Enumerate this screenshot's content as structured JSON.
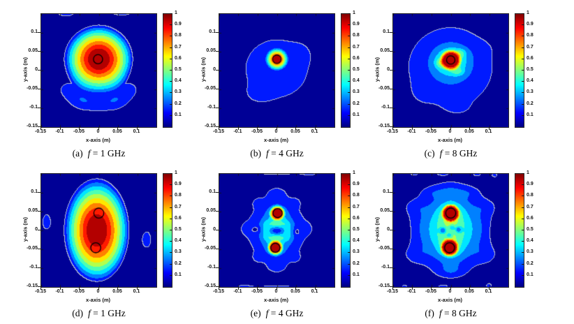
{
  "figure": {
    "background": "#ffffff",
    "axis_color": "#262626",
    "xlabel": "x-axis (m)",
    "ylabel": "y-axis (m)",
    "x_tick_labels": [
      "-0.15",
      "-0.1",
      "-0.05",
      "0",
      "0.05",
      "0.1"
    ],
    "x_tick_values": [
      -0.15,
      -0.1,
      -0.05,
      0,
      0.05,
      0.1
    ],
    "y_tick_labels": [
      "0.1",
      "0.05",
      "0",
      "-0.05",
      "-0.1",
      "-0.15"
    ],
    "y_tick_values": [
      0.1,
      0.05,
      0,
      -0.05,
      -0.1,
      -0.15
    ],
    "colorbar_tick_labels": [
      "1",
      "0.9",
      "0.8",
      "0.7",
      "0.6",
      "0.5",
      "0.4",
      "0.3",
      "0.2",
      "0.1"
    ],
    "colorbar_tick_values": [
      1,
      0.9,
      0.8,
      0.7,
      0.6,
      0.5,
      0.4,
      0.3,
      0.2,
      0.1
    ],
    "colormap": "jet",
    "band_colors": [
      "#000096",
      "#001aff",
      "#0080ff",
      "#00e6ff",
      "#4dffb3",
      "#b3ff4d",
      "#ffe600",
      "#ff8000",
      "#ff1a00",
      "#b30000"
    ],
    "colorbar_gradient": [
      "#000080",
      "#0000ff",
      "#00ffff",
      "#ffff00",
      "#ff0000",
      "#800000"
    ],
    "contour_line_color": "#b4bccd",
    "target_circle_color": "#000000"
  },
  "chart_data": [
    {
      "panel": "a",
      "type": "contour",
      "caption": {
        "index": "(a)",
        "variable": "f",
        "relation": "=",
        "value": "1 GHz"
      },
      "frequency_GHz": 1,
      "x_range": [
        -0.15,
        0.15
      ],
      "y_range": [
        -0.15,
        0.15
      ],
      "value_range": [
        0,
        1
      ],
      "peaks": [
        {
          "x": 0,
          "y": 0.03,
          "value": 1.0
        }
      ],
      "target_circles": [
        [
          -0.002,
          0.03,
          0.012
        ]
      ],
      "field_blobs": [
        [
          "cone",
          0,
          0.03,
          0.095,
          0.095,
          1.05,
          1.6
        ],
        [
          "g",
          -0.078,
          -0.05,
          0.028,
          0.022,
          0.12
        ],
        [
          "g",
          -0.045,
          -0.077,
          0.025,
          0.02,
          0.12
        ],
        [
          "g",
          0,
          -0.088,
          0.038,
          0.02,
          0.13
        ],
        [
          "g",
          0.045,
          -0.077,
          0.025,
          0.02,
          0.12
        ],
        [
          "g",
          0.078,
          -0.05,
          0.028,
          0.022,
          0.12
        ],
        [
          "g",
          -0.085,
          0.157,
          0.032,
          0.018,
          0.13
        ],
        [
          "g",
          0.06,
          0.159,
          0.04,
          0.018,
          0.13
        ]
      ]
    },
    {
      "panel": "b",
      "type": "contour",
      "caption": {
        "index": "(b)",
        "variable": "f",
        "relation": "=",
        "value": "4 GHz"
      },
      "frequency_GHz": 4,
      "x_range": [
        -0.15,
        0.15
      ],
      "y_range": [
        -0.15,
        0.15
      ],
      "value_range": [
        0,
        1
      ],
      "peaks": [
        {
          "x": 0,
          "y": 0.03,
          "value": 1.0
        }
      ],
      "target_circles": [
        [
          0,
          0.03,
          0.011
        ]
      ],
      "field_blobs": [
        [
          "cone",
          0,
          0.03,
          0.032,
          0.032,
          1.1,
          1
        ],
        [
          "g",
          0,
          0.005,
          0.132,
          0.125,
          0.12
        ],
        [
          "g",
          -0.05,
          -0.065,
          0.025,
          0.018,
          0.02
        ],
        [
          "g",
          0.065,
          0.045,
          0.02,
          0.02,
          0.015
        ]
      ]
    },
    {
      "panel": "c",
      "type": "contour",
      "caption": {
        "index": "(c)",
        "variable": "f",
        "relation": "=",
        "value": "8 GHz"
      },
      "frequency_GHz": 8,
      "x_range": [
        -0.15,
        0.15
      ],
      "y_range": [
        -0.15,
        0.15
      ],
      "value_range": [
        0,
        1
      ],
      "peaks": [
        {
          "x": 0,
          "y": 0.028,
          "value": 1.0
        }
      ],
      "target_circles": [
        [
          0,
          0.028,
          0.011
        ]
      ],
      "field_blobs": [
        [
          "cone",
          0,
          0.028,
          0.03,
          0.03,
          1.12,
          1
        ],
        [
          "g",
          0,
          0.026,
          0.024,
          0.022,
          0.3
        ],
        [
          "g",
          0,
          0.02,
          0.045,
          0.042,
          0.12
        ],
        [
          "g",
          0.026,
          0.046,
          0.01,
          0.008,
          0.15
        ],
        [
          "g",
          -0.028,
          0.02,
          0.009,
          0.009,
          0.14
        ],
        [
          "g",
          0.02,
          -0.004,
          0.011,
          0.007,
          0.12
        ],
        [
          "g",
          0,
          0.005,
          0.105,
          0.1,
          0.16
        ],
        [
          "g",
          0.08,
          0.055,
          0.02,
          0.015,
          0.03
        ],
        [
          "g",
          -0.075,
          -0.06,
          0.02,
          0.02,
          0.03
        ],
        [
          "g",
          0.02,
          -0.1,
          0.025,
          0.015,
          0.03
        ]
      ]
    },
    {
      "panel": "d",
      "type": "contour",
      "caption": {
        "index": "(d)",
        "variable": "f",
        "relation": "=",
        "value": "1 GHz"
      },
      "frequency_GHz": 1,
      "x_range": [
        -0.15,
        0.15
      ],
      "y_range": [
        -0.15,
        0.15
      ],
      "value_range": [
        0,
        1
      ],
      "peaks": [
        {
          "x": -0.005,
          "y": 0,
          "value": 1.0
        }
      ],
      "target_circles": [
        [
          0,
          0.046,
          0.013
        ],
        [
          -0.008,
          -0.046,
          0.013
        ]
      ],
      "field_blobs": [
        [
          "cone",
          -0.005,
          0,
          0.09,
          0.145,
          1.05,
          1.6
        ],
        [
          "g",
          -0.135,
          0.022,
          0.014,
          0.026,
          0.13
        ],
        [
          "g",
          0.125,
          -0.025,
          0.015,
          0.028,
          0.13
        ]
      ]
    },
    {
      "panel": "e",
      "type": "contour",
      "caption": {
        "index": "(e)",
        "variable": "f",
        "relation": "=",
        "value": "4 GHz"
      },
      "frequency_GHz": 4,
      "x_range": [
        -0.15,
        0.15
      ],
      "y_range": [
        -0.15,
        0.15
      ],
      "value_range": [
        0,
        1
      ],
      "peaks": [
        {
          "x": 0.001,
          "y": 0.046,
          "value": 1.0
        },
        {
          "x": -0.004,
          "y": -0.046,
          "value": 1.0
        }
      ],
      "target_circles": [
        [
          0.002,
          0.046,
          0.012
        ],
        [
          -0.004,
          -0.046,
          0.012
        ]
      ],
      "field_blobs": [
        [
          "cone",
          0.001,
          0.046,
          0.022,
          0.022,
          1.15,
          1
        ],
        [
          "cone",
          -0.004,
          -0.046,
          0.022,
          0.022,
          1.15,
          1
        ],
        [
          "g",
          0.001,
          0.046,
          0.015,
          0.014,
          0.2
        ],
        [
          "g",
          -0.004,
          -0.046,
          0.015,
          0.014,
          0.2
        ],
        [
          "g",
          0,
          0,
          0.055,
          0.06,
          0.24
        ],
        [
          "g",
          0,
          0,
          0.03,
          0.035,
          0.1
        ],
        [
          "g",
          0,
          0.018,
          0.02,
          0.007,
          0.12
        ],
        [
          "g",
          0,
          -0.02,
          0.02,
          0.007,
          0.12
        ],
        [
          "g",
          -0.028,
          -0.001,
          0.007,
          0.016,
          0.12
        ],
        [
          "g",
          0.028,
          -0.001,
          0.007,
          0.016,
          0.12
        ],
        [
          "g",
          0,
          -0.001,
          0.012,
          0.007,
          -0.22
        ],
        [
          "g",
          -0.056,
          0.002,
          0.009,
          0.006,
          -0.13
        ],
        [
          "g",
          0.053,
          -0.003,
          0.006,
          0.009,
          -0.11
        ],
        [
          "g",
          -0.075,
          0.004,
          0.014,
          0.012,
          0.08
        ],
        [
          "g",
          0.075,
          0.004,
          0.014,
          0.012,
          0.08
        ],
        [
          "g",
          0,
          0.096,
          0.018,
          0.014,
          0.1
        ],
        [
          "g",
          0,
          -0.096,
          0.018,
          0.014,
          0.1
        ],
        [
          "g",
          -0.048,
          0.073,
          0.012,
          0.01,
          0.07
        ],
        [
          "g",
          0.048,
          0.073,
          0.012,
          0.01,
          0.07
        ],
        [
          "g",
          -0.048,
          -0.073,
          0.012,
          0.01,
          0.07
        ],
        [
          "g",
          0.048,
          -0.073,
          0.012,
          0.01,
          0.07
        ],
        [
          "g",
          0,
          0.157,
          0.09,
          0.012,
          0.12
        ],
        [
          "g",
          0,
          -0.157,
          0.09,
          0.012,
          0.12
        ],
        [
          "g",
          0.09,
          0.148,
          0.02,
          0.008,
          0.05
        ],
        [
          "g",
          -0.09,
          -0.148,
          0.02,
          0.008,
          0.05
        ]
      ]
    },
    {
      "panel": "f",
      "type": "contour",
      "caption": {
        "index": "(f)",
        "variable": "f",
        "relation": "=",
        "value": "8 GHz"
      },
      "frequency_GHz": 8,
      "x_range": [
        -0.15,
        0.15
      ],
      "y_range": [
        -0.15,
        0.15
      ],
      "value_range": [
        0,
        1
      ],
      "peaks": [
        {
          "x": 0,
          "y": 0.046,
          "value": 1.0
        },
        {
          "x": -0.003,
          "y": -0.046,
          "value": 1.0
        }
      ],
      "target_circles": [
        [
          0,
          0.046,
          0.013
        ],
        [
          -0.003,
          -0.046,
          0.013
        ]
      ],
      "field_blobs": [
        [
          "cone",
          0,
          0.046,
          0.026,
          0.026,
          1.2,
          1
        ],
        [
          "cone",
          -0.003,
          -0.046,
          0.026,
          0.026,
          1.2,
          1
        ],
        [
          "g",
          0,
          0.046,
          0.016,
          0.015,
          0.25
        ],
        [
          "g",
          -0.003,
          -0.046,
          0.016,
          0.015,
          0.25
        ],
        [
          "g",
          0,
          0.005,
          0.085,
          0.072,
          0.3
        ],
        [
          "g",
          0,
          0,
          0.035,
          0.055,
          0.22
        ],
        [
          "g",
          -0.02,
          0,
          0.006,
          0.006,
          -0.28
        ],
        [
          "g",
          0.02,
          0.002,
          0.006,
          0.006,
          -0.26
        ],
        [
          "g",
          0.003,
          0.007,
          0.005,
          0.005,
          -0.2
        ],
        [
          "g",
          -0.004,
          -0.013,
          0.005,
          0.005,
          -0.2
        ],
        [
          "g",
          0,
          0.102,
          0.024,
          0.013,
          0.1
        ],
        [
          "g",
          0,
          -0.107,
          0.024,
          0.013,
          0.1
        ],
        [
          "g",
          -0.045,
          0.1,
          0.018,
          0.01,
          0.06
        ],
        [
          "g",
          0.045,
          0.1,
          0.018,
          0.01,
          0.06
        ],
        [
          "g",
          -0.128,
          0,
          0.02,
          0.03,
          -0.1
        ],
        [
          "g",
          0.128,
          0,
          0.02,
          0.03,
          -0.1
        ],
        [
          "g",
          -0.09,
          -0.065,
          0.02,
          0.015,
          0.07
        ],
        [
          "g",
          0.09,
          -0.065,
          0.02,
          0.015,
          0.07
        ],
        [
          "g",
          -0.09,
          0.06,
          0.018,
          0.012,
          0.05
        ],
        [
          "g",
          0.09,
          0.06,
          0.018,
          0.012,
          0.05
        ],
        [
          "g",
          0.115,
          0.146,
          0.007,
          0.005,
          0.12
        ],
        [
          "g",
          -0.02,
          0.15,
          0.012,
          0.004,
          0.11
        ],
        [
          "g",
          0.07,
          0.148,
          0.009,
          0.004,
          0.11
        ],
        [
          "g",
          -0.095,
          0.149,
          0.01,
          0.004,
          0.11
        ],
        [
          "g",
          -0.02,
          -0.15,
          0.012,
          0.004,
          0.11
        ],
        [
          "g",
          0.1,
          -0.146,
          0.007,
          0.005,
          0.12
        ],
        [
          "g",
          -0.12,
          -0.149,
          0.009,
          0.004,
          0.11
        ]
      ]
    }
  ]
}
